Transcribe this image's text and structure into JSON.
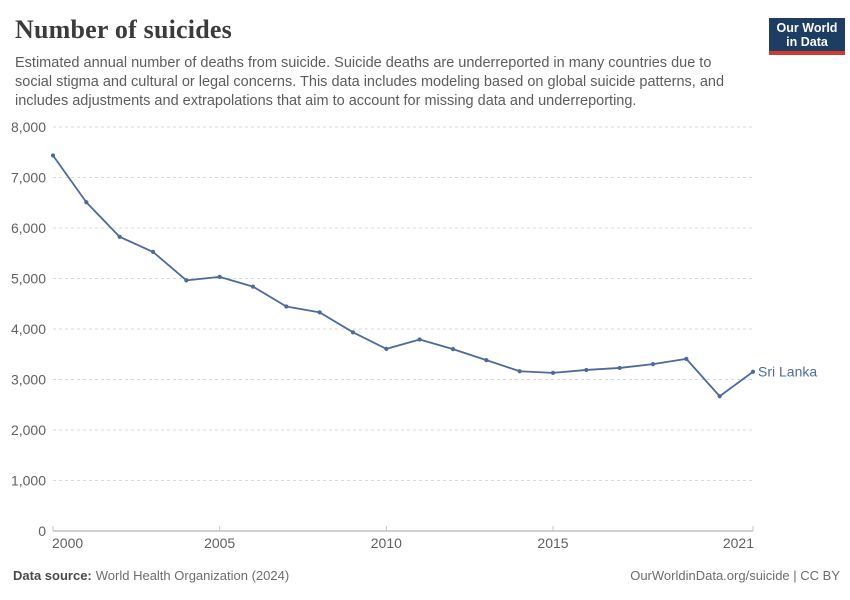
{
  "header": {
    "title": "Number of suicides",
    "subtitle": "Estimated annual number of deaths from suicide. Suicide deaths are underreported in many countries due to social stigma and cultural or legal concerns. This data includes modeling based on global suicide patterns, and includes adjustments and extrapolations that aim to account for missing data and underreporting."
  },
  "logo": {
    "line1": "Our World",
    "line2": "in Data",
    "bg_color": "#1d3d63",
    "bar_color": "#cd3b31"
  },
  "footer": {
    "datasource_label": "Data source:",
    "datasource_value": "World Health Organization (2024)",
    "credit": "OurWorldinData.org/suicide | CC BY"
  },
  "colors": {
    "line": "#4C6A9C",
    "grid": "#d9d9d9",
    "axis": "#a5a5a5",
    "tick": "#c4c4c4",
    "tick_label": "#616161"
  },
  "chart_data": {
    "type": "line",
    "title": "Number of suicides",
    "xlabel": "",
    "ylabel": "",
    "grid": "horizontal-dashed",
    "legend_position": "end-of-line-label",
    "ylim": [
      0,
      8000
    ],
    "yticks": [
      0,
      1000,
      2000,
      3000,
      4000,
      5000,
      6000,
      7000,
      8000
    ],
    "ytick_labels": [
      "0",
      "1,000",
      "2,000",
      "3,000",
      "4,000",
      "5,000",
      "6,000",
      "7,000",
      "8,000"
    ],
    "xticks": [
      2000,
      2005,
      2010,
      2015,
      2021
    ],
    "xtick_labels": [
      "2000",
      "2005",
      "2010",
      "2015",
      "2021"
    ],
    "end_label": "Sri Lanka",
    "series": [
      {
        "name": "Sri Lanka",
        "color": "#4C6A9C",
        "x": [
          2000,
          2001,
          2002,
          2003,
          2004,
          2005,
          2006,
          2007,
          2008,
          2009,
          2010,
          2011,
          2012,
          2013,
          2014,
          2015,
          2016,
          2017,
          2018,
          2019,
          2020,
          2021
        ],
        "values": [
          7436,
          6510,
          5825,
          5527,
          4963,
          5032,
          4840,
          4446,
          4329,
          3934,
          3607,
          3793,
          3601,
          3384,
          3164,
          3131,
          3189,
          3229,
          3304,
          3408,
          2669,
          3153
        ]
      }
    ]
  }
}
